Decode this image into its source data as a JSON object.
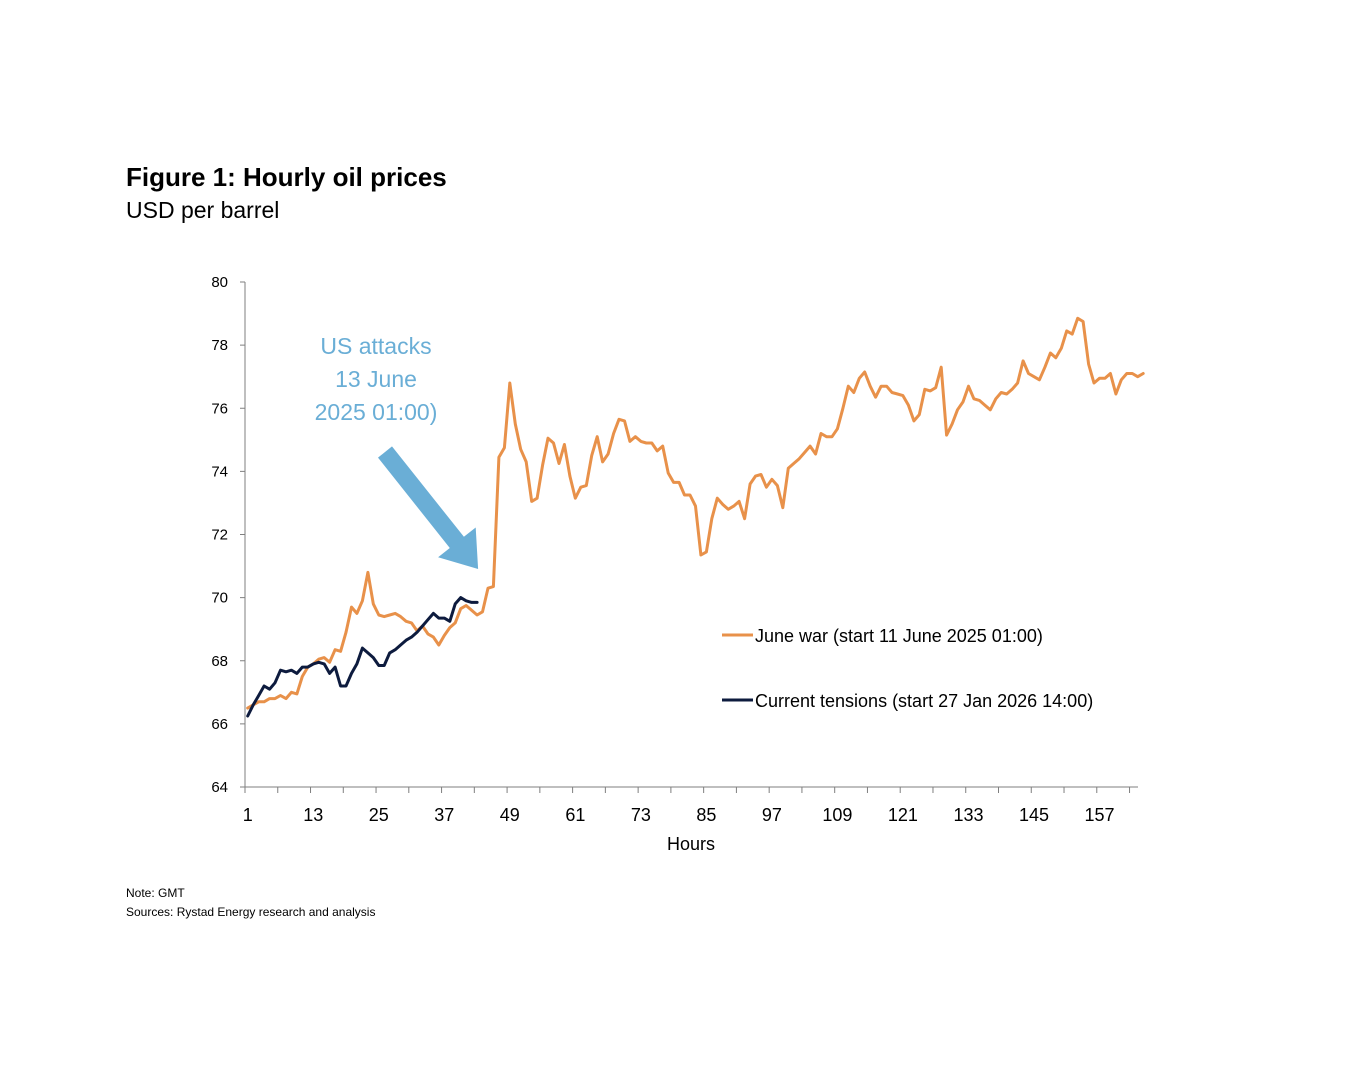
{
  "figure": {
    "title": "Figure 1: Hourly oil prices",
    "subtitle": "USD per barrel",
    "note": "Note: GMT",
    "sources": "Sources: Rystad Energy research and analysis"
  },
  "chart_data": {
    "type": "line",
    "title": "Figure 1: Hourly oil prices",
    "subtitle": "USD per barrel",
    "xlabel": "Hours",
    "ylabel": "USD per barrel",
    "xlim": [
      1,
      163
    ],
    "ylim": [
      64,
      80
    ],
    "yticks": [
      64,
      66,
      68,
      70,
      72,
      74,
      76,
      78,
      80
    ],
    "xtick_labels": [
      1,
      13,
      25,
      37,
      49,
      61,
      73,
      85,
      97,
      109,
      121,
      133,
      145,
      157
    ],
    "grid": false,
    "legend_position": "right-middle",
    "annotation": {
      "lines": [
        "US attacks",
        "13 June",
        "2025 01:00)"
      ],
      "points_to_hour": 43,
      "color": "#6aaed6"
    },
    "series": [
      {
        "name": "June war (start 11 June 2025 01:00)",
        "color": "#e8914a",
        "x_start": 1,
        "values": [
          66.5,
          66.6,
          66.7,
          66.7,
          66.8,
          66.8,
          66.9,
          66.8,
          67.0,
          66.95,
          67.5,
          67.8,
          67.9,
          68.05,
          68.1,
          67.95,
          68.35,
          68.3,
          68.9,
          69.7,
          69.5,
          69.9,
          70.8,
          69.8,
          69.45,
          69.4,
          69.45,
          69.5,
          69.4,
          69.25,
          69.2,
          68.95,
          69.1,
          68.85,
          68.75,
          68.5,
          68.8,
          69.05,
          69.2,
          69.65,
          69.75,
          69.6,
          69.45,
          69.55,
          70.3,
          70.35,
          74.45,
          74.75,
          76.8,
          75.5,
          74.7,
          74.3,
          73.05,
          73.15,
          74.2,
          75.05,
          74.9,
          74.25,
          74.85,
          73.85,
          73.15,
          73.5,
          73.55,
          74.5,
          75.1,
          74.3,
          74.55,
          75.2,
          75.65,
          75.6,
          74.95,
          75.1,
          74.95,
          74.9,
          74.9,
          74.65,
          74.8,
          73.95,
          73.65,
          73.65,
          73.25,
          73.25,
          72.9,
          71.35,
          71.45,
          72.5,
          73.15,
          72.95,
          72.8,
          72.9,
          73.05,
          72.5,
          73.6,
          73.85,
          73.9,
          73.5,
          73.75,
          73.55,
          72.85,
          74.1,
          74.25,
          74.4,
          74.6,
          74.8,
          74.55,
          75.2,
          75.1,
          75.1,
          75.35,
          76.0,
          76.7,
          76.5,
          76.95,
          77.15,
          76.7,
          76.35,
          76.7,
          76.7,
          76.5,
          76.45,
          76.4,
          76.1,
          75.6,
          75.8,
          76.6,
          76.55,
          76.65,
          77.3,
          75.15,
          75.5,
          75.95,
          76.2,
          76.7,
          76.3,
          76.25,
          76.1,
          75.95,
          76.3,
          76.5,
          76.45,
          76.6,
          76.8,
          77.5,
          77.1,
          77.0,
          76.9,
          77.3,
          77.75,
          77.6,
          77.9,
          78.45,
          78.35,
          78.85,
          78.75,
          77.4,
          76.8,
          76.95,
          76.95,
          77.1,
          76.45,
          76.9,
          77.1,
          77.1,
          77.0,
          77.1
        ]
      },
      {
        "name": "Current tensions (start 27 Jan 2026 14:00)",
        "color": "#0d1b3e",
        "x_start": 1,
        "values": [
          66.25,
          66.6,
          66.9,
          67.2,
          67.1,
          67.3,
          67.7,
          67.65,
          67.7,
          67.6,
          67.8,
          67.8,
          67.9,
          67.95,
          67.9,
          67.6,
          67.8,
          67.2,
          67.2,
          67.6,
          67.9,
          68.4,
          68.25,
          68.1,
          67.85,
          67.85,
          68.25,
          68.35,
          68.5,
          68.65,
          68.75,
          68.9,
          69.1,
          69.3,
          69.5,
          69.35,
          69.35,
          69.25,
          69.8,
          70.0,
          69.9,
          69.85,
          69.85
        ]
      }
    ]
  }
}
